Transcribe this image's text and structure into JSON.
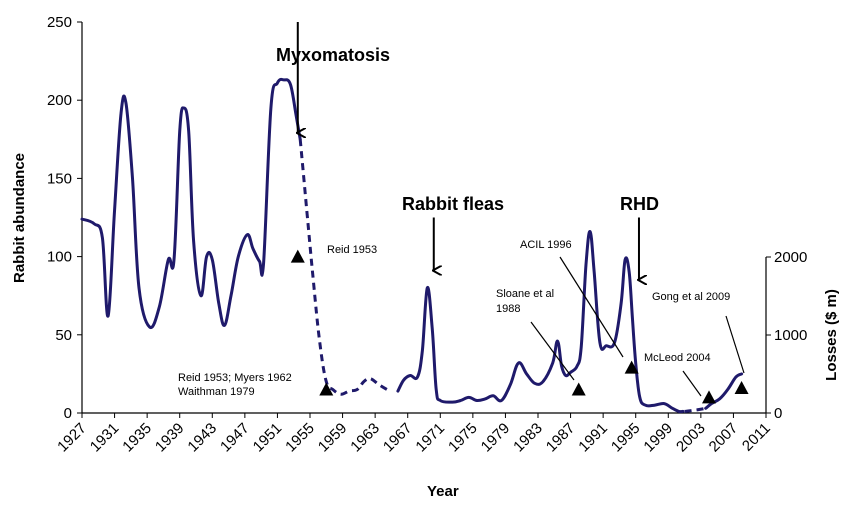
{
  "chart_data": {
    "type": "line",
    "title": "",
    "xlabel": "Year",
    "ylabel": "Rabbit abundance",
    "y2label": "Losses ($ m)",
    "xlim": [
      1927,
      2011
    ],
    "ylim": [
      0,
      250
    ],
    "y2lim": [
      0,
      2000
    ],
    "x_ticks": [
      1927,
      1931,
      1935,
      1939,
      1943,
      1947,
      1951,
      1955,
      1959,
      1963,
      1967,
      1971,
      1975,
      1979,
      1983,
      1987,
      1991,
      1995,
      1999,
      2003,
      2007,
      2011
    ],
    "y_ticks": [
      0,
      50,
      100,
      150,
      200,
      250
    ],
    "y2_ticks": [
      0,
      1000,
      2000
    ],
    "grid": false,
    "line_color": "#1f1a6b",
    "series": [
      {
        "style": "solid",
        "points": [
          [
            1927,
            124
          ],
          [
            1928.5,
            121
          ],
          [
            1929.5,
            112
          ],
          [
            1930.2,
            62
          ],
          [
            1931,
            130
          ],
          [
            1931.8,
            192
          ],
          [
            1932.4,
            198
          ],
          [
            1933.2,
            150
          ],
          [
            1934,
            80
          ],
          [
            1935.3,
            55
          ],
          [
            1936.5,
            68
          ],
          [
            1937.6,
            98
          ],
          [
            1938.3,
            98
          ],
          [
            1939,
            180
          ],
          [
            1939.5,
            195
          ],
          [
            1940.1,
            180
          ],
          [
            1940.7,
            110
          ],
          [
            1941.6,
            75
          ],
          [
            1942.3,
            100
          ],
          [
            1943,
            98
          ],
          [
            1943.8,
            70
          ],
          [
            1944.5,
            56
          ],
          [
            1945.3,
            75
          ],
          [
            1946.2,
            100
          ],
          [
            1947.3,
            114
          ],
          [
            1948,
            105
          ],
          [
            1948.8,
            97
          ],
          [
            1949.3,
            96
          ],
          [
            1950.2,
            195
          ],
          [
            1951,
            211
          ],
          [
            1951.8,
            213
          ],
          [
            1952.6,
            210
          ],
          [
            1953.3,
            190
          ],
          [
            1953.8,
            175
          ]
        ]
      },
      {
        "style": "dashed",
        "points": [
          [
            1953.8,
            175
          ],
          [
            1954.6,
            130
          ],
          [
            1955.4,
            85
          ],
          [
            1956.2,
            45
          ],
          [
            1957,
            20
          ],
          [
            1957.8,
            15
          ],
          [
            1958.8,
            12
          ],
          [
            1959.8,
            14
          ],
          [
            1960.8,
            15
          ],
          [
            1961.6,
            20
          ],
          [
            1962.4,
            22
          ],
          [
            1963.5,
            18
          ],
          [
            1964.8,
            14
          ]
        ]
      },
      {
        "style": "solid",
        "points": [
          [
            1965.8,
            14
          ],
          [
            1966.5,
            21
          ],
          [
            1967.3,
            24
          ],
          [
            1968.2,
            23
          ],
          [
            1968.8,
            40
          ],
          [
            1969.4,
            80
          ],
          [
            1970,
            55
          ],
          [
            1970.5,
            15
          ],
          [
            1971,
            8
          ],
          [
            1972.5,
            7
          ],
          [
            1973.5,
            8
          ],
          [
            1974.5,
            10
          ],
          [
            1975.5,
            8
          ],
          [
            1976.5,
            9
          ],
          [
            1977.5,
            11
          ],
          [
            1978.5,
            8
          ],
          [
            1979.6,
            18
          ],
          [
            1980.6,
            32
          ],
          [
            1981.6,
            25
          ],
          [
            1982.6,
            19
          ],
          [
            1983.6,
            20
          ],
          [
            1984.8,
            32
          ],
          [
            1985.4,
            46
          ],
          [
            1985.9,
            30
          ],
          [
            1986.4,
            24
          ],
          [
            1987,
            26
          ],
          [
            1987.8,
            30
          ],
          [
            1988.3,
            42
          ],
          [
            1988.9,
            95
          ],
          [
            1989.4,
            116
          ],
          [
            1989.9,
            90
          ],
          [
            1990.6,
            45
          ],
          [
            1991.4,
            43
          ],
          [
            1992.4,
            45
          ],
          [
            1993.2,
            70
          ],
          [
            1993.7,
            98
          ],
          [
            1994.2,
            90
          ],
          [
            1994.6,
            60
          ],
          [
            1995,
            32
          ],
          [
            1995.5,
            10
          ],
          [
            1996.2,
            5
          ],
          [
            1997.3,
            5
          ],
          [
            1998.5,
            6
          ],
          [
            1999.5,
            3
          ],
          [
            2000.3,
            1
          ],
          [
            2000.8,
            1
          ]
        ]
      },
      {
        "style": "dashed",
        "points": [
          [
            2001,
            1
          ],
          [
            2002.5,
            2
          ],
          [
            2003.6,
            3
          ]
        ]
      },
      {
        "style": "solid",
        "points": [
          [
            2003.6,
            3
          ],
          [
            2004.3,
            6
          ],
          [
            2005.3,
            9
          ],
          [
            2006.3,
            15
          ],
          [
            2007.3,
            23
          ],
          [
            2008,
            25
          ]
        ]
      }
    ],
    "event_arrows": [
      {
        "label": "Myxomatosis",
        "x": 1953.5,
        "y_from": 250,
        "y_to": 174
      },
      {
        "label": "Rabbit fleas",
        "x": 1970.2,
        "y_from": 125,
        "y_to": 86
      },
      {
        "label": "RHD",
        "x": 1995.4,
        "y_from": 125,
        "y_to": 80
      }
    ],
    "loss_markers": [
      {
        "label": "Reid 1953",
        "year": 1953.5,
        "value": 100
      },
      {
        "label": "Reid 1953; Myers 1962 Waithman 1979",
        "year": 1957,
        "value": 15
      },
      {
        "label": "Sloane et al 1988",
        "year": 1988,
        "value": 15
      },
      {
        "label": "ACIL 1996",
        "year": 1994.5,
        "value": 29
      },
      {
        "label": "McLeod 2004",
        "year": 2004,
        "value": 10
      },
      {
        "label": "Gong et al 2009",
        "year": 2008,
        "value": 16
      }
    ]
  },
  "labels": {
    "myxomatosis": "Myxomatosis",
    "rabbit_fleas": "Rabbit fleas",
    "rhd": "RHD",
    "reid_1953": "Reid 1953",
    "reid_myers_line1": "Reid 1953; Myers 1962",
    "reid_myers_line2": "Waithman 1979",
    "sloane_line1": "Sloane et al",
    "sloane_line2": "1988",
    "acil": "ACIL 1996",
    "mcleod": "McLeod  2004",
    "gong": "Gong et al 2009",
    "x_axis_title": "Year",
    "y_axis_title": "Rabbit abundance",
    "y2_axis_title": "Losses ($ m)"
  }
}
